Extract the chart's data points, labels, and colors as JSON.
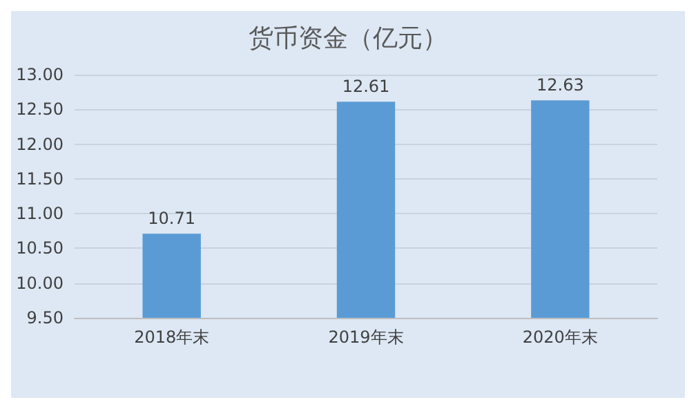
{
  "chart_data": {
    "type": "bar",
    "title": "货币资金（亿元）",
    "categories": [
      "2018年末",
      "2019年末",
      "2020年末"
    ],
    "values": [
      10.71,
      12.61,
      12.63
    ],
    "color": "#5b9bd5",
    "ylim": [
      9.5,
      13
    ],
    "yticks": [
      {
        "value": 9.5,
        "label": "9.50"
      },
      {
        "value": 10,
        "label": "10.00"
      },
      {
        "value": 10.5,
        "label": "10.50"
      },
      {
        "value": 11,
        "label": "11.00"
      },
      {
        "value": 11.5,
        "label": "11.50"
      },
      {
        "value": 12,
        "label": "12.00"
      },
      {
        "value": 12.5,
        "label": "12.50"
      },
      {
        "value": 13,
        "label": "13.00"
      }
    ],
    "grid": true,
    "data_labels": true
  }
}
